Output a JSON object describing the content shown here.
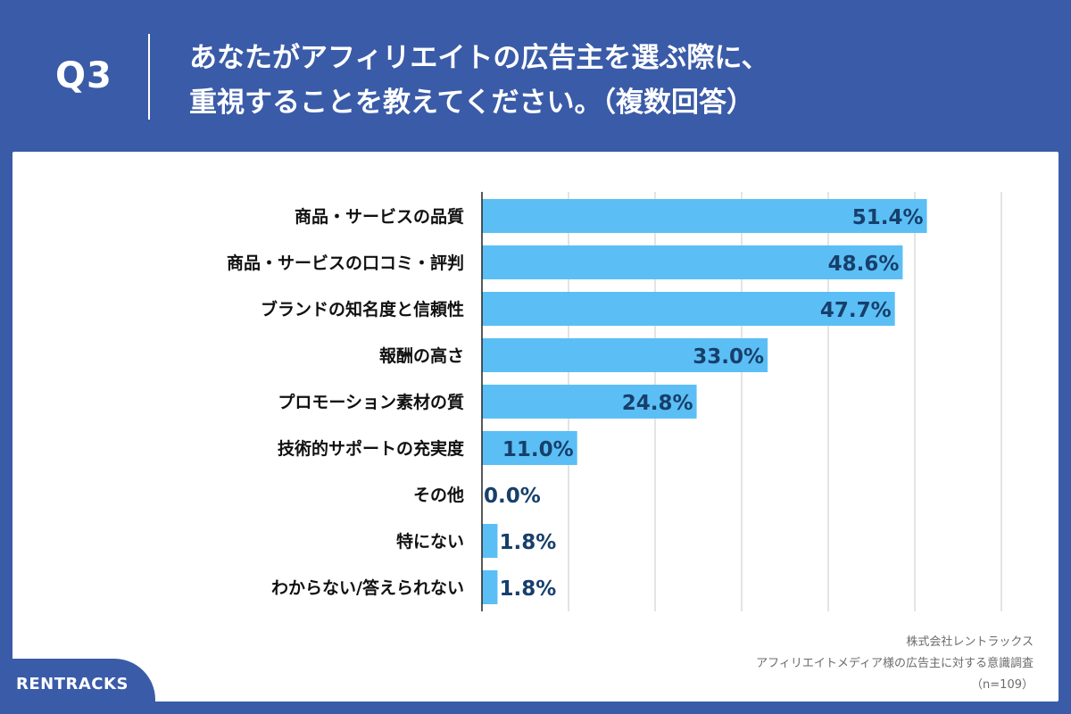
{
  "header": {
    "q_label": "Q3",
    "question_line1": "あなたがアフィリエイトの広告主を選ぶ際に、",
    "question_line2": "重視することを教えてください。（複数回答）"
  },
  "colors": {
    "background": "#3a5ba8",
    "bar": "#5bbff5",
    "value_text": "#173f6b",
    "grid": "#c9c9c9"
  },
  "chart_data": {
    "type": "bar",
    "orientation": "horizontal",
    "categories": [
      "商品・サービスの品質",
      "商品・サービスの口コミ・評判",
      "ブランドの知名度と信頼性",
      "報酬の高さ",
      "プロモーション素材の質",
      "技術的サポートの充実度",
      "その他",
      "特にない",
      "わからない/答えられない"
    ],
    "values": [
      51.4,
      48.6,
      47.7,
      33.0,
      24.8,
      11.0,
      0.0,
      1.8,
      1.8
    ],
    "value_labels": [
      "51.4%",
      "48.6%",
      "47.7%",
      "33.0%",
      "24.8%",
      "11.0%",
      "0.0%",
      "1.8%",
      "1.8%"
    ],
    "xlim": [
      0,
      60
    ],
    "grid_step": 10,
    "grid": true,
    "xlabel": "",
    "ylabel": ""
  },
  "footnote": {
    "line1": "株式会社レントラックス",
    "line2": "アフィリエイトメディア様の広告主に対する意識調査",
    "line3": "（n=109）"
  },
  "logo": {
    "text": "RENTRACKS"
  }
}
